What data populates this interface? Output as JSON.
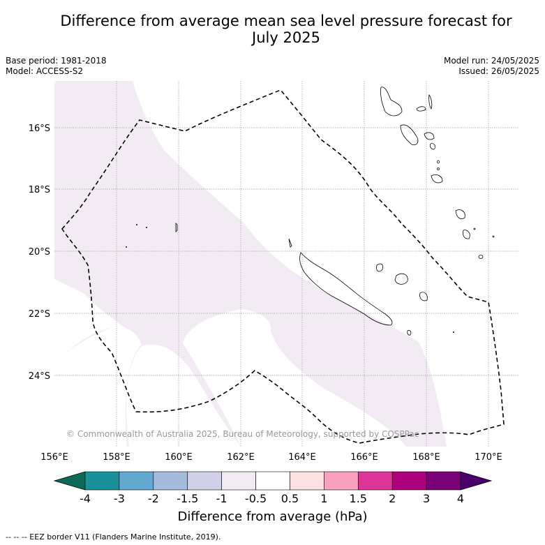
{
  "header": {
    "title_line1": "Difference from average mean sea level pressure forecast for",
    "title_line2": "July 2025"
  },
  "meta": {
    "base_period": "Base period: 1981-2018",
    "model": "Model: ACCESS-S2",
    "model_run": "Model run: 24/05/2025",
    "issued": "Issued: 26/05/2025"
  },
  "map": {
    "copyright": "© Commonwealth of Australia 2025, Bureau of Meteorology, supported by COSPPac",
    "lat_ticks": [
      "16°S",
      "18°S",
      "20°S",
      "22°S",
      "24°S"
    ],
    "lon_ticks": [
      "156°E",
      "158°E",
      "160°E",
      "162°E",
      "164°E",
      "166°E",
      "168°E",
      "170°E"
    ],
    "shading_class": "-1 to -0.5",
    "shading_color": "#f3ebf4",
    "eez_style": "dashed black"
  },
  "colorbar": {
    "labels": [
      "-4",
      "-3",
      "-2",
      "-1.5",
      "-1",
      "-0.5",
      "0.5",
      "1",
      "1.5",
      "2",
      "3",
      "4"
    ],
    "colors": [
      "#0b6a5a",
      "#1a9198",
      "#62a8d0",
      "#a6bcdd",
      "#d0d0e8",
      "#f3ebf4",
      "#ffffff",
      "#fde0e0",
      "#f8a0bc",
      "#dd3497",
      "#ae017e",
      "#7a0177",
      "#49006a"
    ],
    "title": "Difference from average (hPa)"
  },
  "footnote": "--  --  -- EEZ border V11 (Flanders Marine Institute, 2019)."
}
